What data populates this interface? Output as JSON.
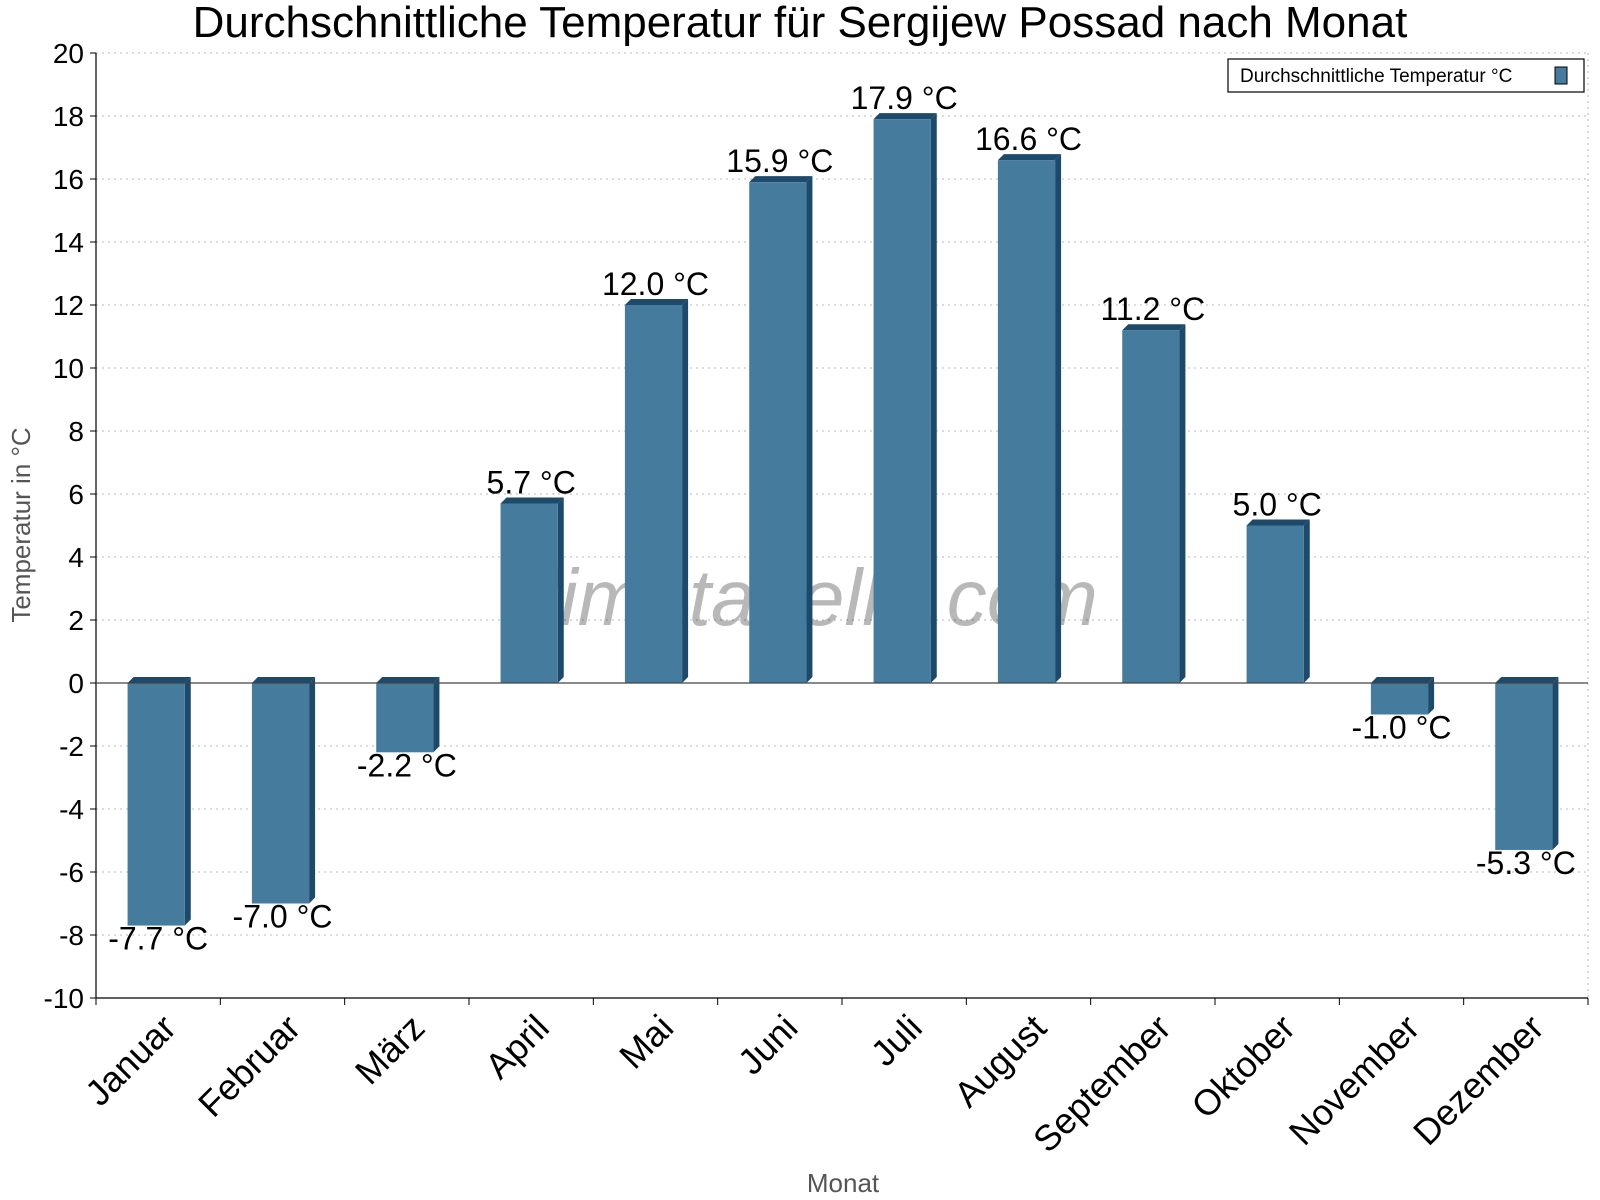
{
  "chart_data": {
    "type": "bar",
    "title": "Durchschnittliche Temperatur für Sergijew Possad nach Monat",
    "xlabel": "Monat",
    "ylabel": "Temperatur in °C",
    "categories": [
      "Januar",
      "Februar",
      "März",
      "April",
      "Mai",
      "Juni",
      "Juli",
      "August",
      "September",
      "Oktober",
      "November",
      "Dezember"
    ],
    "series": [
      {
        "name": "Durchschnittliche Temperatur °C",
        "values": [
          -7.7,
          -7.0,
          -2.2,
          5.7,
          12.0,
          15.9,
          17.9,
          16.6,
          11.2,
          5.0,
          -1.0,
          -5.3
        ],
        "labels": [
          "-7.7 °C",
          "-7.0 °C",
          "-2.2 °C",
          "5.7 °C",
          "12.0 °C",
          "15.9 °C",
          "17.9 °C",
          "16.6 °C",
          "11.2 °C",
          "5.0 °C",
          "-1.0 °C",
          "-5.3 °C"
        ]
      }
    ],
    "ylim": [
      -10,
      20
    ],
    "yticks": [
      "-10",
      "-8",
      "-6",
      "-4",
      "-2",
      "0",
      "2",
      "4",
      "6",
      "8",
      "10",
      "12",
      "14",
      "16",
      "18",
      "20"
    ],
    "grid": true,
    "legend_position": "top-right",
    "colors": {
      "bar_face": "#457b9d",
      "bar_side": "#1d4a6b",
      "grid": "#b8b8b8",
      "axis": "#000000"
    }
  },
  "watermark": "klimatabelle.com"
}
